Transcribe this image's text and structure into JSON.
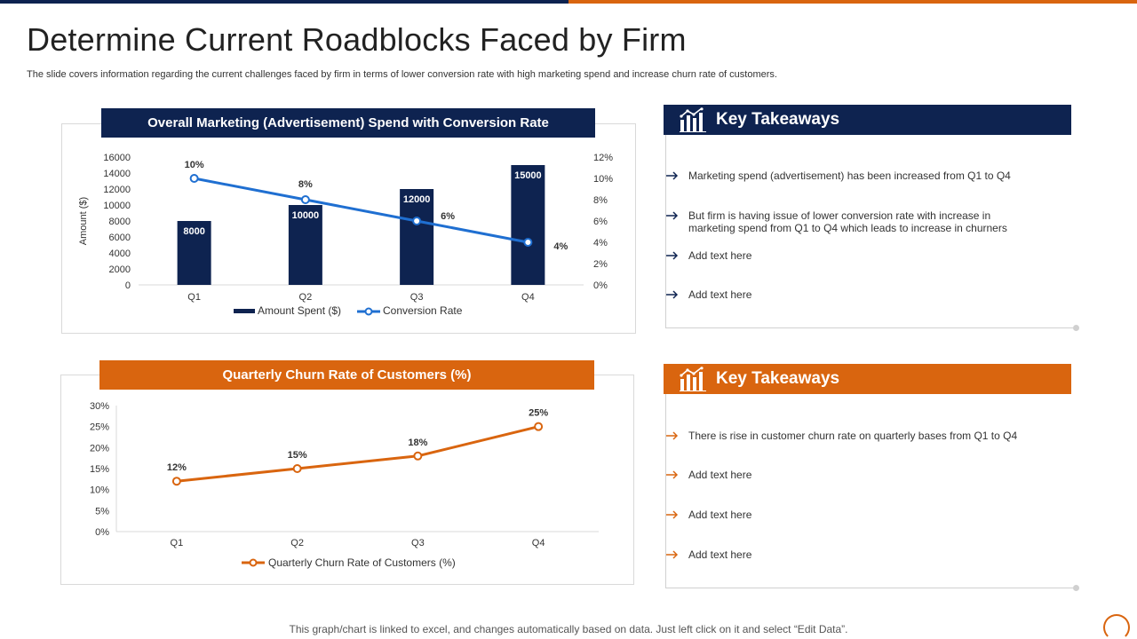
{
  "slide": {
    "title": "Determine Current Roadblocks Faced by Firm",
    "subtitle": "The slide covers information regarding the current challenges faced by firm in terms of lower conversion rate with high marketing spend and increase churn rate of customers.",
    "footer": "This graph/chart is linked to excel,  and changes automatically based on data. Just left click on it and select “Edit Data”."
  },
  "colors": {
    "navy": "#0e2350",
    "orange": "#d9650f",
    "blue_line": "#1f6fd1"
  },
  "chart_data": [
    {
      "type": "bar",
      "title": "Overall Marketing (Advertisement) Spend with Conversion Rate",
      "categories": [
        "Q1",
        "Q2",
        "Q3",
        "Q4"
      ],
      "ylabel": "Amount ($)",
      "ylim": [
        0,
        16000
      ],
      "yticks": [
        "0",
        "2000",
        "4000",
        "6000",
        "8000",
        "10000",
        "12000",
        "14000",
        "16000"
      ],
      "y2lim": [
        0,
        12
      ],
      "y2ticks": [
        "0%",
        "2%",
        "4%",
        "6%",
        "8%",
        "10%",
        "12%"
      ],
      "series": [
        {
          "name": "Amount Spent ($)",
          "kind": "bar",
          "axis": "left",
          "values": [
            8000,
            10000,
            12000,
            15000
          ],
          "labels": [
            "8000",
            "10000",
            "12000",
            "15000"
          ]
        },
        {
          "name": "Conversion Rate",
          "kind": "line",
          "axis": "right",
          "values": [
            10,
            8,
            6,
            4
          ],
          "labels": [
            "10%",
            "8%",
            "6%",
            "4%"
          ]
        }
      ]
    },
    {
      "type": "line",
      "title": "Quarterly Churn Rate of Customers (%)",
      "categories": [
        "Q1",
        "Q2",
        "Q3",
        "Q4"
      ],
      "ylim": [
        0,
        30
      ],
      "yticks": [
        "0%",
        "5%",
        "10%",
        "15%",
        "20%",
        "25%",
        "30%"
      ],
      "series": [
        {
          "name": "Quarterly Churn Rate of Customers (%)",
          "values": [
            12,
            15,
            18,
            25
          ],
          "labels": [
            "12%",
            "15%",
            "18%",
            "25%"
          ]
        }
      ]
    }
  ],
  "takeaways": [
    {
      "title": "Key Takeaways",
      "icon": "bar-chart-icon",
      "items": [
        "Marketing spend (advertisement) has been increased from Q1 to Q4",
        "But firm is having issue of lower conversion rate with increase in marketing spend from Q1 to Q4 which leads to increase in churners",
        "Add text here",
        "Add text here"
      ]
    },
    {
      "title": "Key Takeaways",
      "icon": "bar-chart-icon",
      "items": [
        "There is rise in customer churn rate on quarterly bases from Q1 to Q4",
        "Add text here",
        "Add text here",
        "Add text here"
      ]
    }
  ]
}
